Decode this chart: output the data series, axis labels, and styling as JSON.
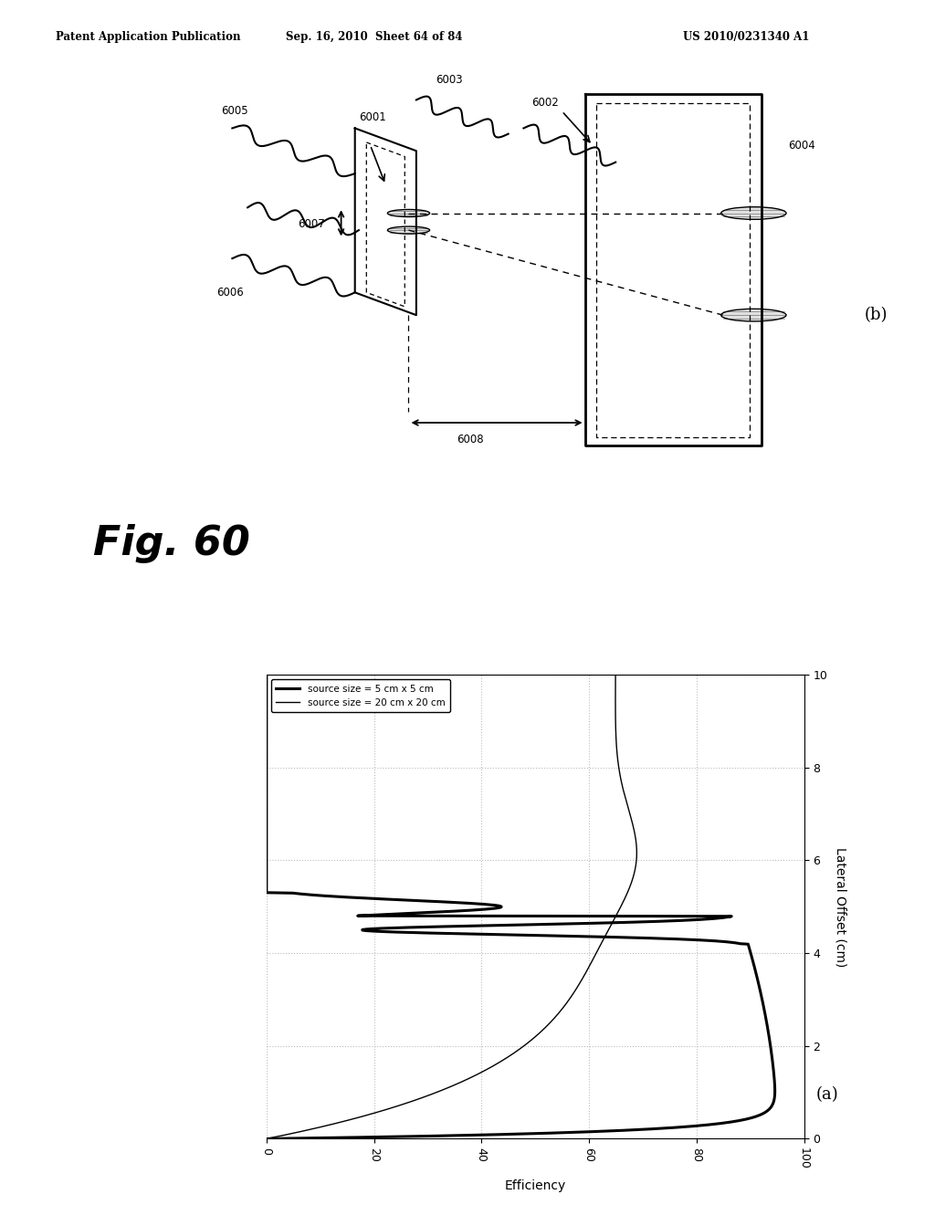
{
  "header_left": "Patent Application Publication",
  "header_mid": "Sep. 16, 2010  Sheet 64 of 84",
  "header_right": "US 2010/0231340 A1",
  "fig_label": "Fig. 60",
  "diagram_label": "(b)",
  "graph_label": "(a)",
  "graph_xlabel_rotated": "Lateral Offset (cm)",
  "graph_ylabel_rotated": "Efficiency",
  "legend_line1": "source size = 5 cm x 5 cm",
  "legend_line2": "source size = 20 cm x 20 cm",
  "bg_color": "#ffffff",
  "line_color": "#000000",
  "grid_color": "#bbbbbb"
}
